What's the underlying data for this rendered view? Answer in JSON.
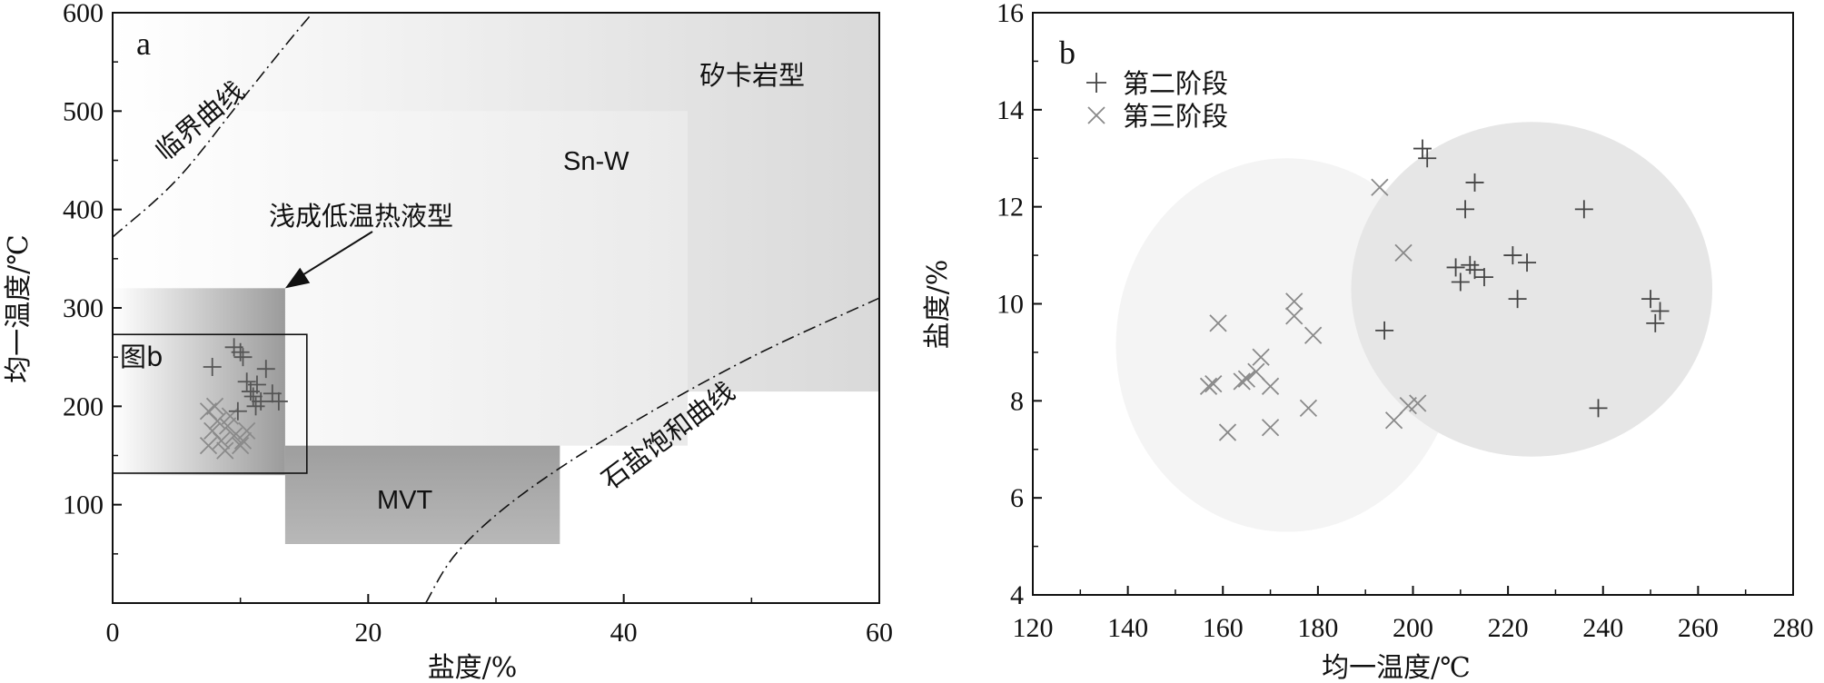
{
  "chart_data": [
    {
      "panel": "a",
      "type": "scatter",
      "xlabel": "盐度/%",
      "ylabel": "均一温度/℃",
      "xlim": [
        0,
        60
      ],
      "ylim": [
        0,
        600
      ],
      "xticks": [
        0,
        20,
        40,
        60
      ],
      "xtick_labels": [
        "0",
        "20",
        "40",
        "60"
      ],
      "yticks": [
        100,
        200,
        300,
        400,
        500,
        600
      ],
      "ytick_labels": [
        "100",
        "200",
        "300",
        "400",
        "500",
        "600"
      ],
      "regions": [
        {
          "name": "矽卡岩型",
          "x": [
            0,
            60
          ],
          "y": [
            215,
            600
          ]
        },
        {
          "name": "Sn-W",
          "x": [
            0,
            45
          ],
          "y": [
            160,
            500
          ]
        },
        {
          "name": "浅成低温热液型",
          "x": [
            0,
            13.5
          ],
          "y": [
            130,
            320
          ]
        },
        {
          "name": "MVT",
          "x": [
            13.5,
            35
          ],
          "y": [
            60,
            160
          ]
        }
      ],
      "annotations": {
        "critical_curve": "临界曲线",
        "halite_curve": "石盐饱和曲线",
        "skarn": "矽卡岩型",
        "snw": "Sn-W",
        "epithermal": "浅成低温热液型",
        "mvt": "MVT",
        "inset": "图b"
      },
      "critical_curve": [
        [
          0,
          372
        ],
        [
          5,
          430
        ],
        [
          10,
          510
        ],
        [
          15,
          590
        ],
        [
          18.5,
          640
        ]
      ],
      "halite_curve": [
        [
          24.5,
          0
        ],
        [
          27,
          52
        ],
        [
          32,
          110
        ],
        [
          40,
          178
        ],
        [
          50,
          250
        ],
        [
          60,
          310
        ]
      ],
      "series": [
        {
          "marker": "plus",
          "points": [
            [
              7.8,
              240
            ],
            [
              9.5,
              260
            ],
            [
              10,
              255
            ],
            [
              10.2,
              250
            ],
            [
              10.5,
              225
            ],
            [
              10.8,
              215
            ],
            [
              11,
              210
            ],
            [
              11.3,
              222
            ],
            [
              11.6,
              205
            ],
            [
              12,
              238
            ],
            [
              12.5,
              213
            ],
            [
              13,
              205
            ],
            [
              9.8,
              195
            ],
            [
              11.2,
              200
            ]
          ]
        },
        {
          "marker": "cross",
          "points": [
            [
              7.5,
              195
            ],
            [
              8,
              200
            ],
            [
              8.2,
              185
            ],
            [
              7.8,
              175
            ],
            [
              8.5,
              165
            ],
            [
              9,
              180
            ],
            [
              9.5,
              170
            ],
            [
              10,
              160
            ],
            [
              10.5,
              175
            ],
            [
              8.8,
              155
            ],
            [
              9.2,
              190
            ],
            [
              10.2,
              165
            ],
            [
              7.5,
              160
            ]
          ]
        }
      ]
    },
    {
      "panel": "b",
      "type": "scatter",
      "xlabel": "均一温度/℃",
      "ylabel": "盐度/%",
      "xlim": [
        120,
        280
      ],
      "ylim": [
        4,
        16
      ],
      "xticks": [
        120,
        140,
        160,
        180,
        200,
        220,
        240,
        260,
        280
      ],
      "xtick_labels": [
        "120",
        "140",
        "160",
        "180",
        "200",
        "220",
        "240",
        "260",
        "280"
      ],
      "yticks": [
        4,
        6,
        8,
        10,
        12,
        14,
        16
      ],
      "ytick_labels": [
        "4",
        "6",
        "8",
        "10",
        "12",
        "14",
        "16"
      ],
      "series": [
        {
          "name": "第二阶段",
          "marker": "plus",
          "points": [
            [
              202,
              13.2
            ],
            [
              203,
              13.0
            ],
            [
              213,
              12.5
            ],
            [
              211,
              11.95
            ],
            [
              236,
              11.95
            ],
            [
              221,
              11.0
            ],
            [
              224,
              10.85
            ],
            [
              209,
              10.75
            ],
            [
              212,
              10.8
            ],
            [
              213,
              10.7
            ],
            [
              215,
              10.55
            ],
            [
              210,
              10.45
            ],
            [
              222,
              10.1
            ],
            [
              250,
              10.1
            ],
            [
              252,
              9.85
            ],
            [
              251,
              9.6
            ],
            [
              194,
              9.45
            ],
            [
              239,
              7.85
            ]
          ]
        },
        {
          "name": "第三阶段",
          "marker": "cross",
          "points": [
            [
              193,
              12.4
            ],
            [
              198,
              11.05
            ],
            [
              175,
              10.05
            ],
            [
              175,
              9.75
            ],
            [
              159,
              9.6
            ],
            [
              179,
              9.35
            ],
            [
              168,
              8.9
            ],
            [
              167,
              8.6
            ],
            [
              165,
              8.45
            ],
            [
              164,
              8.4
            ],
            [
              170,
              8.3
            ],
            [
              158,
              8.35
            ],
            [
              157,
              8.3
            ],
            [
              178,
              7.85
            ],
            [
              199,
              7.9
            ],
            [
              201,
              7.95
            ],
            [
              196,
              7.6
            ],
            [
              170,
              7.45
            ],
            [
              161,
              7.35
            ]
          ]
        }
      ],
      "ellipses": [
        {
          "cx": 173.5,
          "cy": 9.15,
          "rx": 36,
          "ry": 3.85,
          "color": "#f4f4f4"
        },
        {
          "cx": 225,
          "cy": 10.3,
          "rx": 38,
          "ry": 3.45,
          "color": "#e6e6e6"
        }
      ]
    }
  ]
}
